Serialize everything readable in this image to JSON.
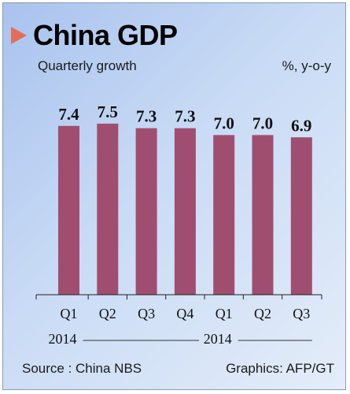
{
  "chart_data": {
    "type": "bar",
    "title": "China GDP",
    "subtitle": "Quarterly growth",
    "unit": "%, y-o-y",
    "categories": [
      "Q1",
      "Q2",
      "Q3",
      "Q4",
      "Q1",
      "Q2",
      "Q3"
    ],
    "values": [
      7.4,
      7.5,
      7.3,
      7.3,
      7.0,
      7.0,
      6.9
    ],
    "value_labels": [
      "7.4",
      "7.5",
      "7.3",
      "7.3",
      "7.0",
      "7.0",
      "6.9"
    ],
    "year_groups": [
      {
        "label": "2014",
        "start": 0,
        "end": 3
      },
      {
        "label": "2014",
        "start": 4,
        "end": 6
      }
    ],
    "ylim": [
      0,
      7.6
    ],
    "grid": false,
    "bar_color": "#a04e70"
  },
  "footer": {
    "source": "Source : China NBS",
    "credit": "Graphics: AFP/GT"
  }
}
